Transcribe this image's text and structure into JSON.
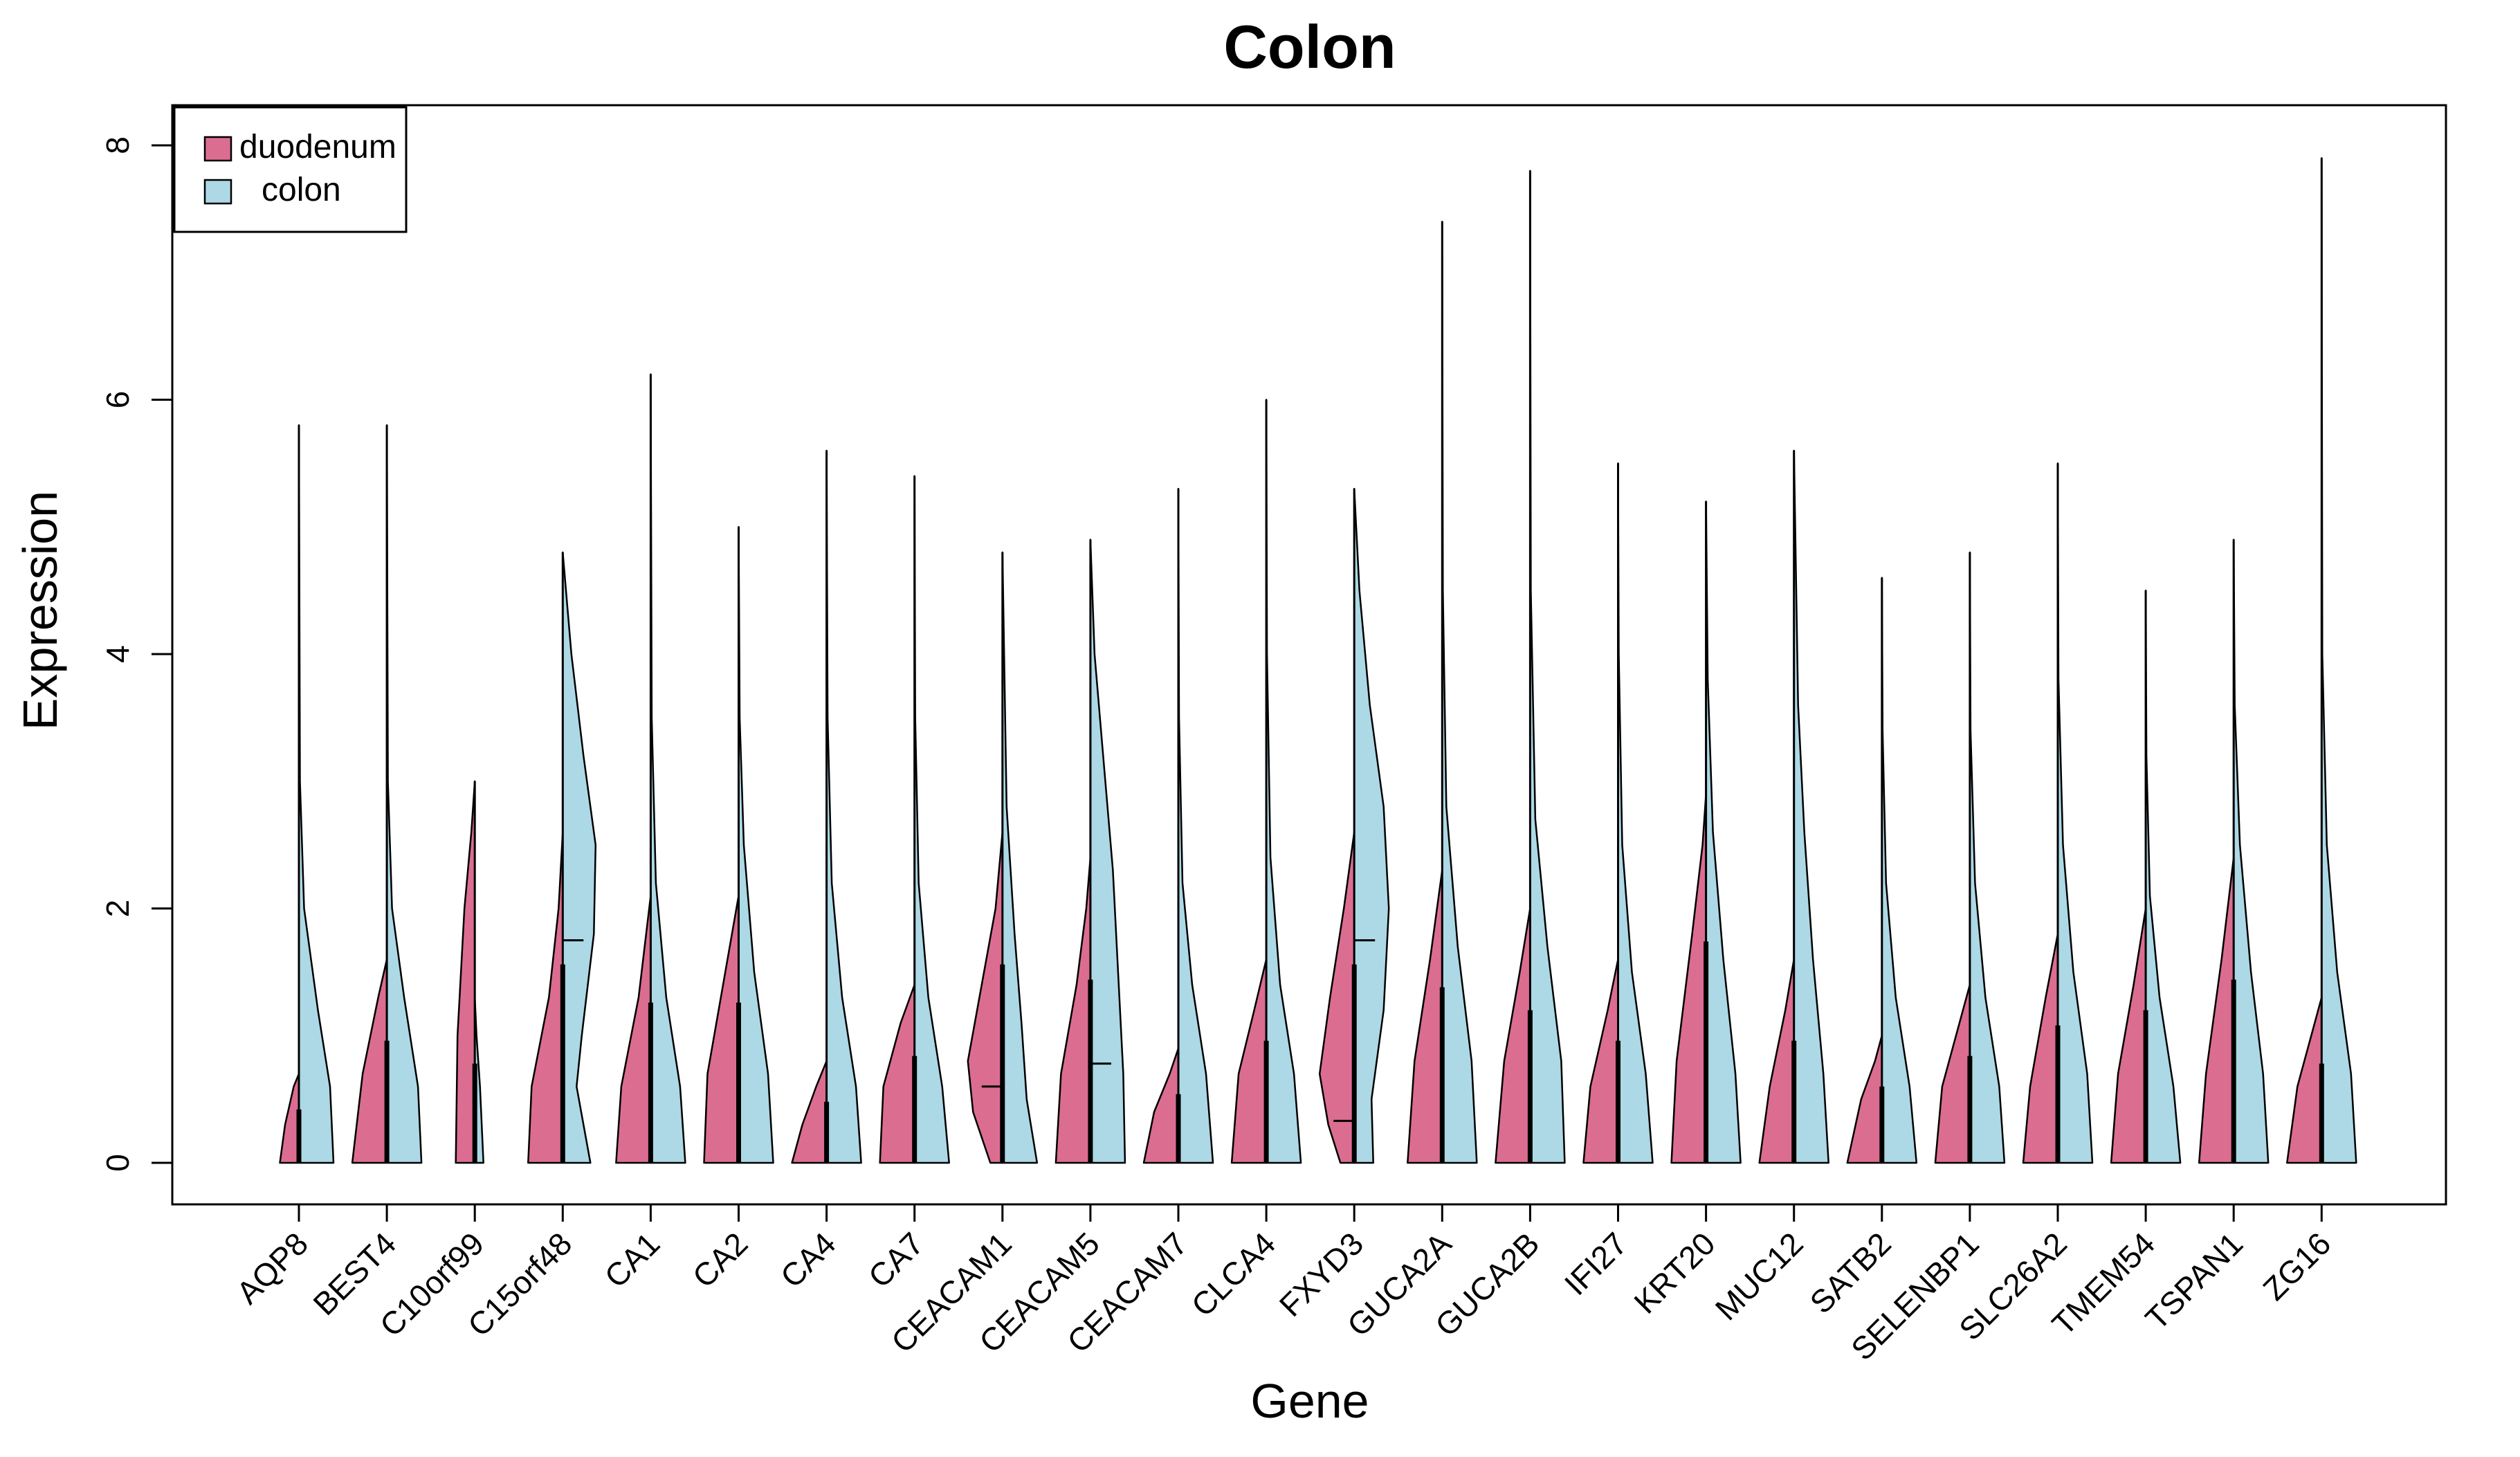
{
  "chart_data": {
    "type": "violin",
    "title": "Colon",
    "xlabel": "Gene",
    "ylabel": "Expression",
    "ylim": [
      0,
      8.3
    ],
    "yticks": [
      0,
      2,
      4,
      6,
      8
    ],
    "grid": false,
    "legend_position": "top-left",
    "categories": [
      "AQP8",
      "BEST4",
      "C10orf99",
      "C15orf48",
      "CA1",
      "CA2",
      "CA4",
      "CA7",
      "CEACAM1",
      "CEACAM5",
      "CEACAM7",
      "CLCA4",
      "FXYD3",
      "GUCA2A",
      "GUCA2B",
      "IFI27",
      "KRT20",
      "MUC12",
      "SATB2",
      "SELENBP1",
      "SLC26A2",
      "TMEM54",
      "TSPAN1",
      "ZG16"
    ],
    "series": [
      {
        "name": "duodenum",
        "color": "#DB6D91",
        "max": [
          0.7,
          1.6,
          3.0,
          2.6,
          2.1,
          2.1,
          0.8,
          1.4,
          2.6,
          2.4,
          0.9,
          1.6,
          2.6,
          2.3,
          2.0,
          1.6,
          2.9,
          1.6,
          1.0,
          1.4,
          1.8,
          2.0,
          2.4,
          1.3
        ],
        "median": [
          0,
          0,
          0,
          0,
          0,
          0,
          0,
          0,
          0.6,
          0,
          0,
          0,
          0.33,
          0,
          0,
          0,
          0,
          0,
          0,
          0,
          0,
          0,
          0,
          0
        ],
        "shape": [
          [
            [
              0,
              0.55
            ],
            [
              0.3,
              0.4
            ],
            [
              0.6,
              0.15
            ],
            [
              0.7,
              0
            ]
          ],
          [
            [
              0,
              1
            ],
            [
              0.7,
              0.7
            ],
            [
              1.3,
              0.25
            ],
            [
              1.6,
              0
            ]
          ],
          [
            [
              0,
              0.55
            ],
            [
              1,
              0.5
            ],
            [
              2,
              0.3
            ],
            [
              2.6,
              0.1
            ],
            [
              3.0,
              0
            ]
          ],
          [
            [
              0,
              1
            ],
            [
              0.6,
              0.9
            ],
            [
              1.3,
              0.4
            ],
            [
              2.0,
              0.12
            ],
            [
              2.6,
              0
            ]
          ],
          [
            [
              0,
              1
            ],
            [
              0.6,
              0.85
            ],
            [
              1.3,
              0.35
            ],
            [
              2.1,
              0
            ]
          ],
          [
            [
              0,
              1
            ],
            [
              0.7,
              0.9
            ],
            [
              1.4,
              0.45
            ],
            [
              2.1,
              0
            ]
          ],
          [
            [
              0,
              1
            ],
            [
              0.3,
              0.7
            ],
            [
              0.6,
              0.3
            ],
            [
              0.8,
              0
            ]
          ],
          [
            [
              0,
              1
            ],
            [
              0.6,
              0.9
            ],
            [
              1.1,
              0.4
            ],
            [
              1.4,
              0
            ]
          ],
          [
            [
              0,
              0.35
            ],
            [
              0.4,
              0.85
            ],
            [
              0.8,
              1
            ],
            [
              1.4,
              0.6
            ],
            [
              2.0,
              0.2
            ],
            [
              2.6,
              0
            ]
          ],
          [
            [
              0,
              1
            ],
            [
              0.7,
              0.85
            ],
            [
              1.4,
              0.4
            ],
            [
              2.0,
              0.12
            ],
            [
              2.4,
              0
            ]
          ],
          [
            [
              0,
              1
            ],
            [
              0.4,
              0.7
            ],
            [
              0.7,
              0.25
            ],
            [
              0.9,
              0
            ]
          ],
          [
            [
              0,
              1
            ],
            [
              0.7,
              0.8
            ],
            [
              1.2,
              0.35
            ],
            [
              1.6,
              0
            ]
          ],
          [
            [
              0,
              0.4
            ],
            [
              0.3,
              0.75
            ],
            [
              0.7,
              1
            ],
            [
              1.3,
              0.7
            ],
            [
              2.0,
              0.3
            ],
            [
              2.6,
              0
            ]
          ],
          [
            [
              0,
              1
            ],
            [
              0.8,
              0.8
            ],
            [
              1.6,
              0.35
            ],
            [
              2.3,
              0
            ]
          ],
          [
            [
              0,
              1
            ],
            [
              0.8,
              0.75
            ],
            [
              1.5,
              0.3
            ],
            [
              2.0,
              0
            ]
          ],
          [
            [
              0,
              1
            ],
            [
              0.6,
              0.8
            ],
            [
              1.2,
              0.3
            ],
            [
              1.6,
              0
            ]
          ],
          [
            [
              0,
              1
            ],
            [
              0.8,
              0.85
            ],
            [
              1.8,
              0.4
            ],
            [
              2.5,
              0.1
            ],
            [
              2.9,
              0
            ]
          ],
          [
            [
              0,
              1
            ],
            [
              0.6,
              0.7
            ],
            [
              1.2,
              0.25
            ],
            [
              1.6,
              0
            ]
          ],
          [
            [
              0,
              1
            ],
            [
              0.5,
              0.6
            ],
            [
              0.8,
              0.2
            ],
            [
              1.0,
              0
            ]
          ],
          [
            [
              0,
              1
            ],
            [
              0.6,
              0.8
            ],
            [
              1.1,
              0.3
            ],
            [
              1.4,
              0
            ]
          ],
          [
            [
              0,
              1
            ],
            [
              0.6,
              0.8
            ],
            [
              1.3,
              0.35
            ],
            [
              1.8,
              0
            ]
          ],
          [
            [
              0,
              1
            ],
            [
              0.7,
              0.8
            ],
            [
              1.4,
              0.35
            ],
            [
              2.0,
              0
            ]
          ],
          [
            [
              0,
              1
            ],
            [
              0.7,
              0.8
            ],
            [
              1.6,
              0.35
            ],
            [
              2.4,
              0
            ]
          ],
          [
            [
              0,
              1
            ],
            [
              0.6,
              0.7
            ],
            [
              1.0,
              0.3
            ],
            [
              1.3,
              0
            ]
          ]
        ]
      },
      {
        "name": "colon",
        "color": "#ADD8E6",
        "max": [
          5.8,
          5.8,
          1.3,
          4.8,
          6.2,
          5.0,
          5.6,
          5.4,
          4.8,
          4.9,
          5.3,
          6.0,
          5.3,
          7.4,
          7.8,
          5.5,
          5.2,
          5.6,
          4.6,
          4.8,
          5.5,
          4.5,
          4.9,
          7.9
        ],
        "median": [
          0,
          0,
          0,
          1.75,
          0,
          0,
          0,
          0,
          0,
          0.78,
          0,
          0,
          1.75,
          0,
          0,
          0,
          0,
          0,
          0,
          0,
          0,
          0,
          0,
          0
        ],
        "shape": [
          [
            [
              0,
              1
            ],
            [
              0.6,
              0.9
            ],
            [
              1.2,
              0.55
            ],
            [
              2.0,
              0.15
            ],
            [
              3.0,
              0.03
            ],
            [
              5.8,
              0
            ]
          ],
          [
            [
              0,
              1
            ],
            [
              0.6,
              0.9
            ],
            [
              1.3,
              0.5
            ],
            [
              2.0,
              0.15
            ],
            [
              3.0,
              0.03
            ],
            [
              5.8,
              0
            ]
          ],
          [
            [
              0,
              0.25
            ],
            [
              0.6,
              0.15
            ],
            [
              1.0,
              0.05
            ],
            [
              1.3,
              0
            ]
          ],
          [
            [
              0,
              0.8
            ],
            [
              0.6,
              0.4
            ],
            [
              1.0,
              0.55
            ],
            [
              1.8,
              0.9
            ],
            [
              2.5,
              0.95
            ],
            [
              3.2,
              0.6
            ],
            [
              4.0,
              0.25
            ],
            [
              4.8,
              0
            ]
          ],
          [
            [
              0,
              1
            ],
            [
              0.6,
              0.85
            ],
            [
              1.3,
              0.45
            ],
            [
              2.2,
              0.15
            ],
            [
              3.5,
              0.03
            ],
            [
              6.2,
              0
            ]
          ],
          [
            [
              0,
              1
            ],
            [
              0.7,
              0.85
            ],
            [
              1.5,
              0.45
            ],
            [
              2.5,
              0.15
            ],
            [
              3.5,
              0.03
            ],
            [
              5.0,
              0
            ]
          ],
          [
            [
              0,
              1
            ],
            [
              0.6,
              0.85
            ],
            [
              1.3,
              0.45
            ],
            [
              2.2,
              0.15
            ],
            [
              3.5,
              0.03
            ],
            [
              5.6,
              0
            ]
          ],
          [
            [
              0,
              1
            ],
            [
              0.6,
              0.8
            ],
            [
              1.3,
              0.4
            ],
            [
              2.2,
              0.12
            ],
            [
              3.5,
              0.02
            ],
            [
              5.4,
              0
            ]
          ],
          [
            [
              0,
              1
            ],
            [
              0.5,
              0.7
            ],
            [
              1.1,
              0.55
            ],
            [
              1.8,
              0.35
            ],
            [
              2.8,
              0.12
            ],
            [
              4.8,
              0
            ]
          ],
          [
            [
              0,
              1
            ],
            [
              0.7,
              0.95
            ],
            [
              1.5,
              0.8
            ],
            [
              2.3,
              0.65
            ],
            [
              3.1,
              0.4
            ],
            [
              4.0,
              0.12
            ],
            [
              4.9,
              0
            ]
          ],
          [
            [
              0,
              1
            ],
            [
              0.7,
              0.8
            ],
            [
              1.4,
              0.4
            ],
            [
              2.2,
              0.12
            ],
            [
              3.5,
              0.02
            ],
            [
              5.3,
              0
            ]
          ],
          [
            [
              0,
              1
            ],
            [
              0.7,
              0.8
            ],
            [
              1.4,
              0.4
            ],
            [
              2.4,
              0.12
            ],
            [
              4.0,
              0.02
            ],
            [
              6.0,
              0
            ]
          ],
          [
            [
              0,
              0.55
            ],
            [
              0.5,
              0.5
            ],
            [
              1.2,
              0.85
            ],
            [
              2.0,
              1
            ],
            [
              2.8,
              0.85
            ],
            [
              3.6,
              0.45
            ],
            [
              4.5,
              0.15
            ],
            [
              5.3,
              0
            ]
          ],
          [
            [
              0,
              1
            ],
            [
              0.8,
              0.85
            ],
            [
              1.7,
              0.45
            ],
            [
              2.8,
              0.12
            ],
            [
              4.5,
              0.02
            ],
            [
              7.4,
              0
            ]
          ],
          [
            [
              0,
              1
            ],
            [
              0.8,
              0.9
            ],
            [
              1.7,
              0.5
            ],
            [
              2.7,
              0.15
            ],
            [
              4.5,
              0.02
            ],
            [
              7.8,
              0
            ]
          ],
          [
            [
              0,
              1
            ],
            [
              0.7,
              0.8
            ],
            [
              1.5,
              0.4
            ],
            [
              2.5,
              0.12
            ],
            [
              4.0,
              0.02
            ],
            [
              5.5,
              0
            ]
          ],
          [
            [
              0,
              1
            ],
            [
              0.7,
              0.85
            ],
            [
              1.6,
              0.5
            ],
            [
              2.6,
              0.2
            ],
            [
              3.8,
              0.05
            ],
            [
              5.2,
              0
            ]
          ],
          [
            [
              0,
              1
            ],
            [
              0.7,
              0.85
            ],
            [
              1.6,
              0.55
            ],
            [
              2.6,
              0.3
            ],
            [
              3.6,
              0.12
            ],
            [
              5.6,
              0
            ]
          ],
          [
            [
              0,
              1
            ],
            [
              0.6,
              0.8
            ],
            [
              1.3,
              0.4
            ],
            [
              2.2,
              0.12
            ],
            [
              3.4,
              0.02
            ],
            [
              4.6,
              0
            ]
          ],
          [
            [
              0,
              1
            ],
            [
              0.6,
              0.85
            ],
            [
              1.3,
              0.45
            ],
            [
              2.2,
              0.15
            ],
            [
              3.4,
              0.02
            ],
            [
              4.8,
              0
            ]
          ],
          [
            [
              0,
              1
            ],
            [
              0.7,
              0.85
            ],
            [
              1.5,
              0.45
            ],
            [
              2.5,
              0.15
            ],
            [
              3.8,
              0.02
            ],
            [
              5.5,
              0
            ]
          ],
          [
            [
              0,
              1
            ],
            [
              0.6,
              0.8
            ],
            [
              1.3,
              0.4
            ],
            [
              2.1,
              0.12
            ],
            [
              3.2,
              0.02
            ],
            [
              4.5,
              0
            ]
          ],
          [
            [
              0,
              1
            ],
            [
              0.7,
              0.85
            ],
            [
              1.5,
              0.5
            ],
            [
              2.5,
              0.18
            ],
            [
              3.6,
              0.03
            ],
            [
              4.9,
              0
            ]
          ],
          [
            [
              0,
              1
            ],
            [
              0.7,
              0.85
            ],
            [
              1.5,
              0.45
            ],
            [
              2.5,
              0.15
            ],
            [
              4.0,
              0.02
            ],
            [
              7.9,
              0
            ]
          ]
        ]
      }
    ]
  }
}
